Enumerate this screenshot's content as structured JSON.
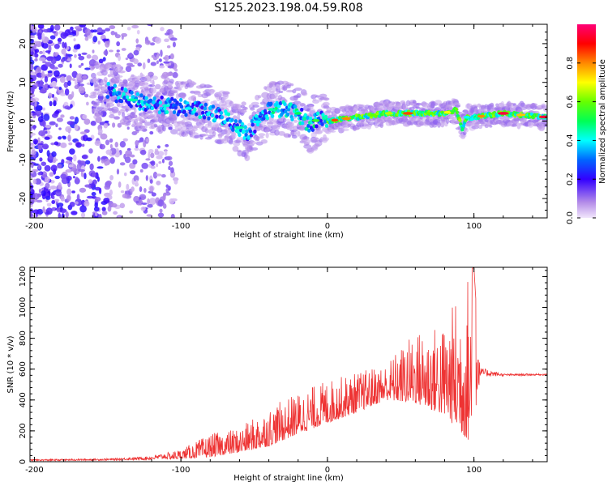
{
  "chart_data": [
    {
      "type": "heatmap",
      "title": "S125.2023.198.04.59.R08",
      "xlabel": "Height of straight line (km)",
      "ylabel": "Frequency (Hz)",
      "xlim": [
        -203,
        150
      ],
      "ylim": [
        -25,
        25
      ],
      "xticks": [
        -200,
        -100,
        0,
        100
      ],
      "yticks": [
        -20,
        -10,
        0,
        10,
        20
      ],
      "colorbar": {
        "label": "Normalized spectral amplitude",
        "range": [
          0,
          1
        ],
        "ticks": [
          0.0,
          0.2,
          0.4,
          0.6,
          0.8
        ],
        "colormap": "rainbow (violet low to magenta high)"
      },
      "ridge": {
        "x": [
          -150,
          -130,
          -110,
          -90,
          -70,
          -55,
          -40,
          -30,
          -20,
          -12,
          -5,
          0,
          20,
          40,
          60,
          80,
          88,
          92,
          95,
          100,
          120,
          150
        ],
        "freq": [
          8,
          5,
          4,
          3,
          1,
          -3,
          3,
          3,
          2,
          -1,
          1,
          0,
          1,
          2,
          2,
          2,
          3,
          -2,
          1,
          1,
          2,
          1
        ]
      }
    },
    {
      "type": "line",
      "xlabel": "Height of straight line (km)",
      "ylabel": "SNR (10 * v/v)",
      "xlim": [
        -203,
        150
      ],
      "ylim": [
        0,
        1260
      ],
      "xticks": [
        -200,
        -100,
        0,
        100
      ],
      "yticks": [
        0,
        200,
        400,
        600,
        800,
        1000,
        1200
      ],
      "color": "#ee3333",
      "envelope": {
        "x": [
          -203,
          -150,
          -120,
          -100,
          -80,
          -60,
          -40,
          -20,
          0,
          20,
          40,
          60,
          80,
          95,
          100,
          104,
          120,
          150
        ],
        "low": [
          5,
          8,
          12,
          20,
          30,
          60,
          100,
          180,
          250,
          320,
          400,
          380,
          300,
          150,
          100,
          550,
          555,
          560
        ],
        "high": [
          15,
          20,
          35,
          80,
          180,
          220,
          350,
          450,
          530,
          580,
          640,
          850,
          900,
          1230,
          1260,
          610,
          570,
          570
        ]
      }
    }
  ]
}
